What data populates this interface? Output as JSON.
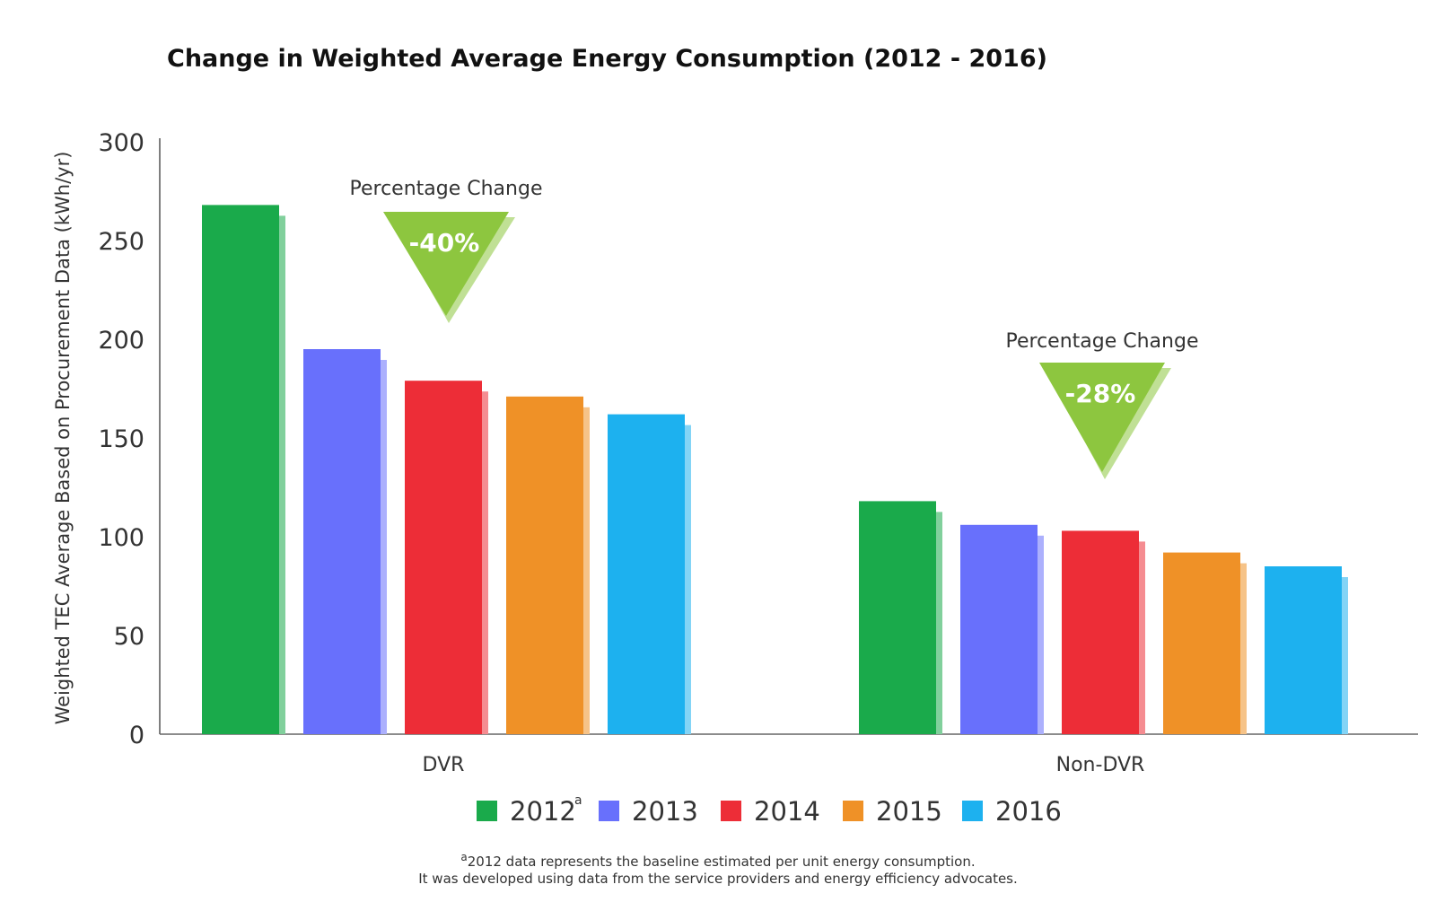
{
  "chart_data": {
    "type": "bar",
    "title": "Change in Weighted Average Energy Consumption (2012 - 2016)",
    "xlabel": "",
    "ylabel": "Weighted TEC Average Based on Procurement Data (kWh/yr)",
    "ylim": [
      0,
      300
    ],
    "yticks": [
      0,
      50,
      100,
      150,
      200,
      250,
      300
    ],
    "grid": false,
    "legend_position": "bottom",
    "categories": [
      "DVR",
      "Non-DVR"
    ],
    "series": [
      {
        "name": "2012",
        "superscript": "a",
        "color": "#1aaa4b",
        "values": [
          268,
          118
        ]
      },
      {
        "name": "2013",
        "color": "#6870fc",
        "values": [
          195,
          106
        ]
      },
      {
        "name": "2014",
        "color": "#ed2d37",
        "values": [
          179,
          103
        ]
      },
      {
        "name": "2015",
        "color": "#ef9127",
        "values": [
          171,
          92
        ]
      },
      {
        "name": "2016",
        "color": "#1db1ef",
        "values": [
          162,
          85
        ]
      }
    ],
    "annotations": [
      {
        "category": "DVR",
        "label": "Percentage Change",
        "value": "-40%",
        "color": "#8dc63f"
      },
      {
        "category": "Non-DVR",
        "label": "Percentage Change",
        "value": "-28%",
        "color": "#8dc63f"
      }
    ]
  },
  "footnote": {
    "marker": "a",
    "line1": "2012 data represents the baseline estimated per unit energy consumption.",
    "line2": "It was developed using data from the service providers and energy efficiency advocates."
  }
}
